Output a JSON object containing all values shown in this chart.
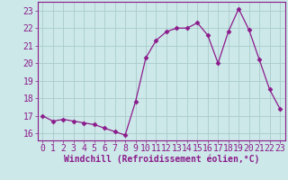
{
  "x": [
    0,
    1,
    2,
    3,
    4,
    5,
    6,
    7,
    8,
    9,
    10,
    11,
    12,
    13,
    14,
    15,
    16,
    17,
    18,
    19,
    20,
    21,
    22,
    23
  ],
  "y": [
    17.0,
    16.7,
    16.8,
    16.7,
    16.6,
    16.5,
    16.3,
    16.1,
    15.9,
    17.8,
    20.3,
    21.3,
    21.8,
    22.0,
    22.0,
    22.3,
    21.6,
    20.0,
    21.8,
    23.1,
    21.9,
    20.2,
    18.5,
    17.4
  ],
  "line_color": "#8b1a8b",
  "marker": "D",
  "marker_size": 2.5,
  "bg_color": "#cce8e8",
  "grid_color": "#aacccc",
  "xlabel": "Windchill (Refroidissement éolien,°C)",
  "xlabel_fontsize": 7,
  "tick_fontsize": 7,
  "ylim": [
    15.6,
    23.5
  ],
  "yticks": [
    16,
    17,
    18,
    19,
    20,
    21,
    22,
    23
  ],
  "xticks": [
    0,
    1,
    2,
    3,
    4,
    5,
    6,
    7,
    8,
    9,
    10,
    11,
    12,
    13,
    14,
    15,
    16,
    17,
    18,
    19,
    20,
    21,
    22,
    23
  ]
}
